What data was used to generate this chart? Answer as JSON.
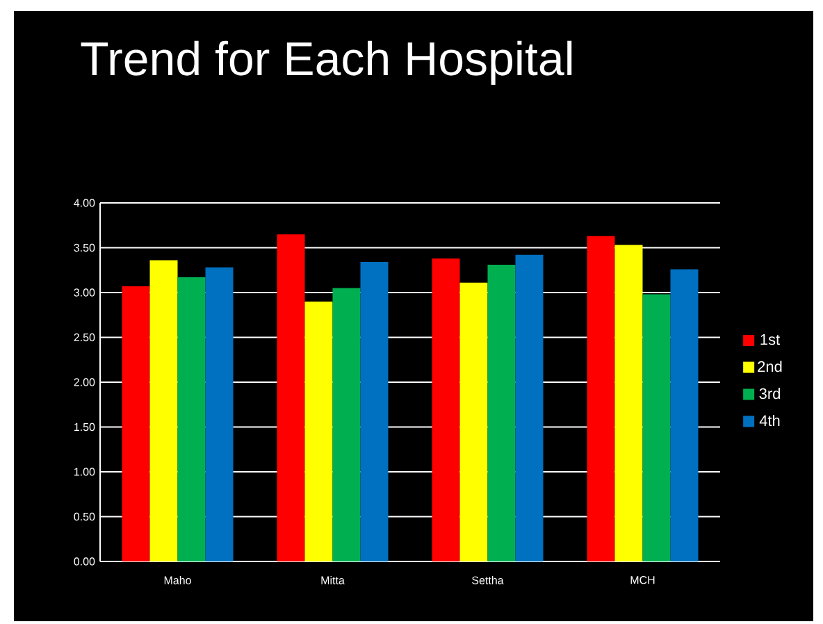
{
  "chart_data": {
    "type": "bar",
    "title": "Trend for Each Hospital",
    "categories": [
      "Maho",
      "Mitta",
      "Settha",
      "MCH"
    ],
    "series": [
      {
        "name": "1st",
        "color": "#ff0000",
        "values": [
          3.07,
          3.65,
          3.38,
          3.63
        ]
      },
      {
        "name": "2nd",
        "color": "#ffff00",
        "values": [
          3.36,
          2.9,
          3.11,
          3.53
        ]
      },
      {
        "name": "3rd",
        "color": "#00b050",
        "values": [
          3.17,
          3.05,
          3.31,
          2.98
        ]
      },
      {
        "name": "4th",
        "color": "#0070c0",
        "values": [
          3.28,
          3.34,
          3.42,
          3.26
        ]
      }
    ],
    "ylim": [
      0,
      4
    ],
    "yticks": [
      {
        "value": 0,
        "label": "0.00"
      },
      {
        "value": 0.5,
        "label": "0.50"
      },
      {
        "value": 1,
        "label": "1.00"
      },
      {
        "value": 1.5,
        "label": "1.50"
      },
      {
        "value": 2,
        "label": "2.00"
      },
      {
        "value": 2.5,
        "label": "2.50"
      },
      {
        "value": 3,
        "label": "3.00"
      },
      {
        "value": 3.5,
        "label": "3.50"
      },
      {
        "value": 4,
        "label": "4.00"
      }
    ],
    "grid": "y",
    "legend": "right"
  }
}
